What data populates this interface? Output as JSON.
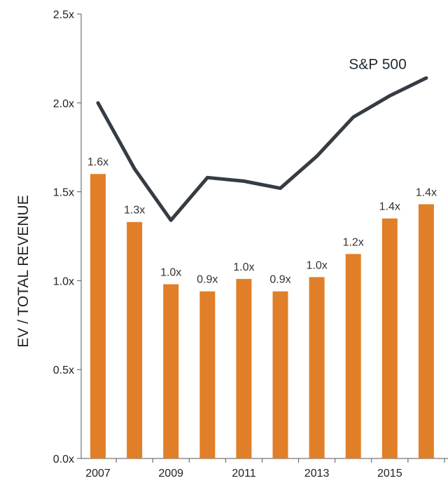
{
  "chart_data": {
    "type": "bar",
    "x": [
      2007,
      2008,
      2009,
      2010,
      2011,
      2012,
      2013,
      2014,
      2015,
      2016
    ],
    "x_tick_labels": [
      "2007",
      "2009",
      "2011",
      "2013",
      "2015"
    ],
    "x_tick_values": [
      2007,
      2009,
      2011,
      2013,
      2015
    ],
    "ylabel": "EV / TOTAL REVENUE",
    "ylim": [
      0,
      2.5
    ],
    "y_tick_labels": [
      "0.0x",
      "0.5x",
      "1.0x",
      "1.5x",
      "2.0x",
      "2.5x"
    ],
    "y_tick_values": [
      0,
      0.5,
      1.0,
      1.5,
      2.0,
      2.5
    ],
    "bars": {
      "values": [
        1.6,
        1.33,
        0.98,
        0.94,
        1.01,
        0.94,
        1.02,
        1.15,
        1.35,
        1.43
      ],
      "labels": [
        "1.6x",
        "1.3x",
        "1.0x",
        "0.9x",
        "1.0x",
        "0.9x",
        "1.0x",
        "1.2x",
        "1.4x",
        "1.4x"
      ],
      "color": "#e07f28"
    },
    "line": {
      "name": "S&P 500",
      "values": [
        2.0,
        1.63,
        1.34,
        1.58,
        1.56,
        1.52,
        1.7,
        1.92,
        2.04,
        2.14
      ],
      "color": "#353c44"
    },
    "grid": false,
    "legend": "none"
  }
}
